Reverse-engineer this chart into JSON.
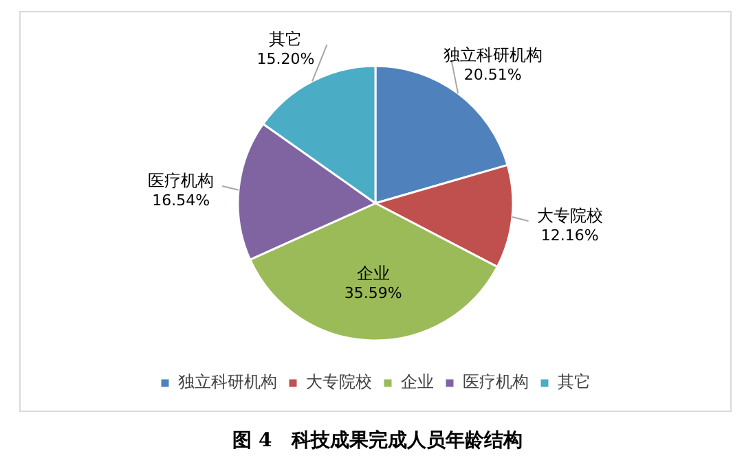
{
  "chart_data": {
    "type": "pie",
    "title": "图 4　科技成果完成人员年龄结构",
    "categories": [
      "独立科研机构",
      "大专院校",
      "企业",
      "医疗机构",
      "其它"
    ],
    "values": [
      20.51,
      12.16,
      35.59,
      16.54,
      15.2
    ],
    "value_labels": [
      "20.51%",
      "12.16%",
      "35.59%",
      "16.54%",
      "15.20%"
    ],
    "colors": [
      "#4f81bd",
      "#c0504d",
      "#9bbb59",
      "#8064a2",
      "#4bacc6"
    ],
    "legend": "bottom"
  }
}
